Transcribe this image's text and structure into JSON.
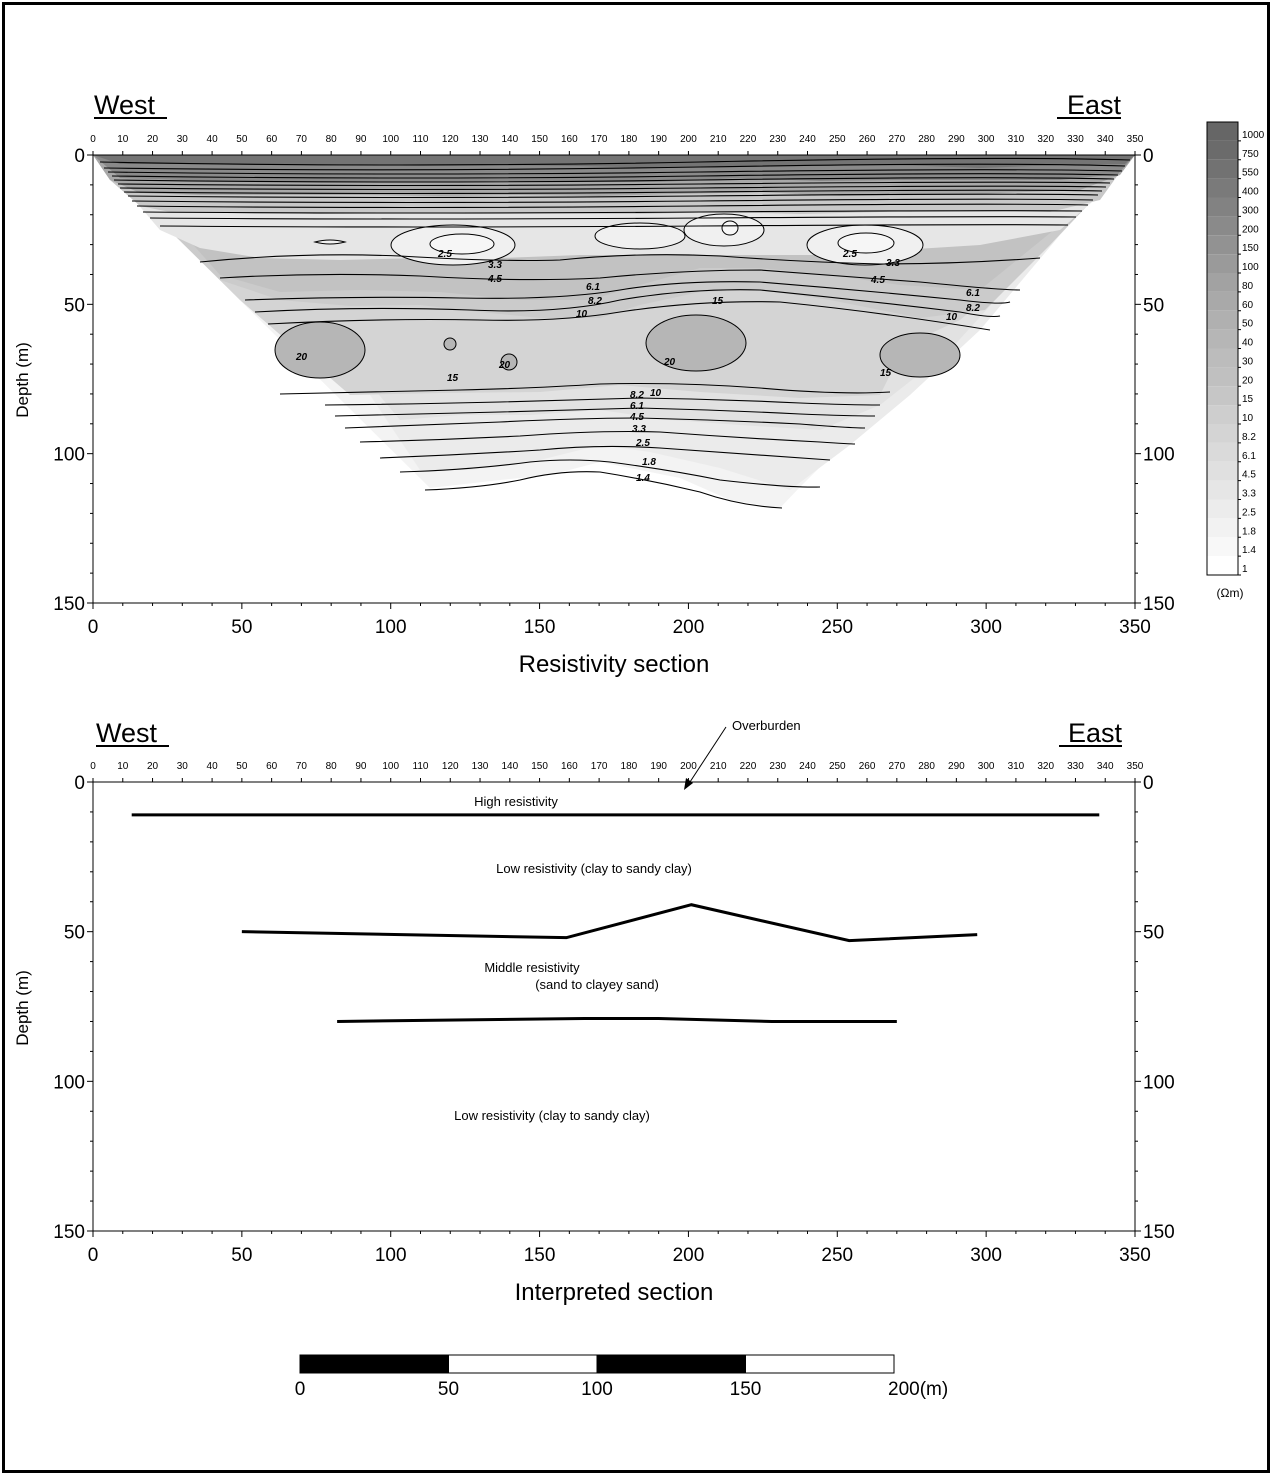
{
  "colors": {
    "bands": [
      "#ffffff",
      "#f8f8f8",
      "#f2f2f2",
      "#ececec",
      "#e6e6e6",
      "#e0e0e0",
      "#dadada",
      "#d4d4d4",
      "#cecece",
      "#c6c6c6",
      "#c0c0c0",
      "#bcbcbc",
      "#b6b6b6",
      "#b0b0b0",
      "#a9a9a9",
      "#a2a2a2",
      "#9a9a9a",
      "#929292",
      "#8a8a8a",
      "#828282",
      "#7a7a7a",
      "#727272",
      "#6b6b6b"
    ],
    "line": "#000000"
  },
  "resistivity": {
    "west": "West",
    "east": "East",
    "ylabel": "Depth (m)",
    "caption": "Resistivity section",
    "top_ticks": [
      "0",
      "10",
      "20",
      "30",
      "40",
      "50",
      "60",
      "70",
      "80",
      "90",
      "100",
      "110",
      "120",
      "130",
      "140",
      "150",
      "160",
      "170",
      "180",
      "190",
      "200",
      "210",
      "220",
      "230",
      "240",
      "250",
      "260",
      "270",
      "280",
      "290",
      "300",
      "310",
      "320",
      "330",
      "340",
      "350"
    ],
    "bottom_ticks": [
      "0",
      "50",
      "100",
      "150",
      "200",
      "250",
      "300",
      "350"
    ],
    "y_ticks": [
      "0",
      "50",
      "100",
      "150"
    ],
    "contour_labels": [
      "2.5",
      "3.3",
      "4.5",
      "6.1",
      "8.2",
      "10",
      "15",
      "20",
      "20",
      "20",
      "15",
      "2.5",
      "3.3",
      "4.5",
      "6.1",
      "8.2",
      "10",
      "15",
      "8.2",
      "10",
      "6.1",
      "4.5",
      "3.3",
      "2.5",
      "1.8",
      "1.4"
    ]
  },
  "colorbar": {
    "levels": [
      "1000",
      "750",
      "550",
      "400",
      "300",
      "200",
      "150",
      "100",
      "80",
      "60",
      "50",
      "40",
      "30",
      "20",
      "15",
      "10",
      "8.2",
      "6.1",
      "4.5",
      "3.3",
      "2.5",
      "1.8",
      "1.4",
      "1"
    ],
    "unit": "(Ωm)"
  },
  "interpreted": {
    "west": "West",
    "east": "East",
    "ylabel": "Depth (m)",
    "caption": "Interpreted section",
    "overburden": "Overburden",
    "labels": [
      "High resistivity",
      "Low resistivity (clay to sandy clay)",
      "Middle resistivity",
      "(sand to clayey sand)",
      "Low resistivity (clay to sandy clay)"
    ]
  },
  "scalebar": {
    "ticks": [
      "0",
      "50",
      "100",
      "150",
      "200(m)"
    ]
  },
  "chart_data": [
    {
      "type": "heatmap",
      "title": "Resistivity section",
      "xlabel": "",
      "ylabel": "Depth (m)",
      "xlim": [
        0,
        350
      ],
      "ylim": [
        150,
        0
      ],
      "section_outline": [
        [
          0,
          0
        ],
        [
          350,
          0
        ],
        [
          285,
          85
        ],
        [
          240,
          115
        ],
        [
          230,
          119
        ],
        [
          200,
          113
        ],
        [
          165,
          101
        ],
        [
          140,
          108
        ],
        [
          113,
          112
        ],
        [
          0,
          0
        ]
      ],
      "colorbar_levels": [
        1,
        1.4,
        1.8,
        2.5,
        3.3,
        4.5,
        6.1,
        8.2,
        10,
        15,
        20,
        30,
        40,
        50,
        60,
        80,
        100,
        150,
        200,
        300,
        400,
        550,
        750,
        1000
      ],
      "contour_values_labeled": [
        1.4,
        1.8,
        2.5,
        3.3,
        4.5,
        6.1,
        8.2,
        10,
        15,
        20
      ]
    },
    {
      "type": "line",
      "title": "Interpreted section",
      "xlabel": "",
      "ylabel": "Depth (m)",
      "xlim": [
        0,
        350
      ],
      "ylim": [
        150,
        0
      ],
      "series": [
        {
          "x": [
            13,
            338
          ],
          "y": [
            11,
            11
          ]
        },
        {
          "x": [
            50,
            159,
            201,
            254,
            297
          ],
          "y": [
            50,
            52,
            41,
            53,
            51
          ]
        },
        {
          "x": [
            82,
            165,
            190,
            228,
            270
          ],
          "y": [
            80,
            79,
            79,
            80,
            80
          ]
        }
      ]
    }
  ]
}
